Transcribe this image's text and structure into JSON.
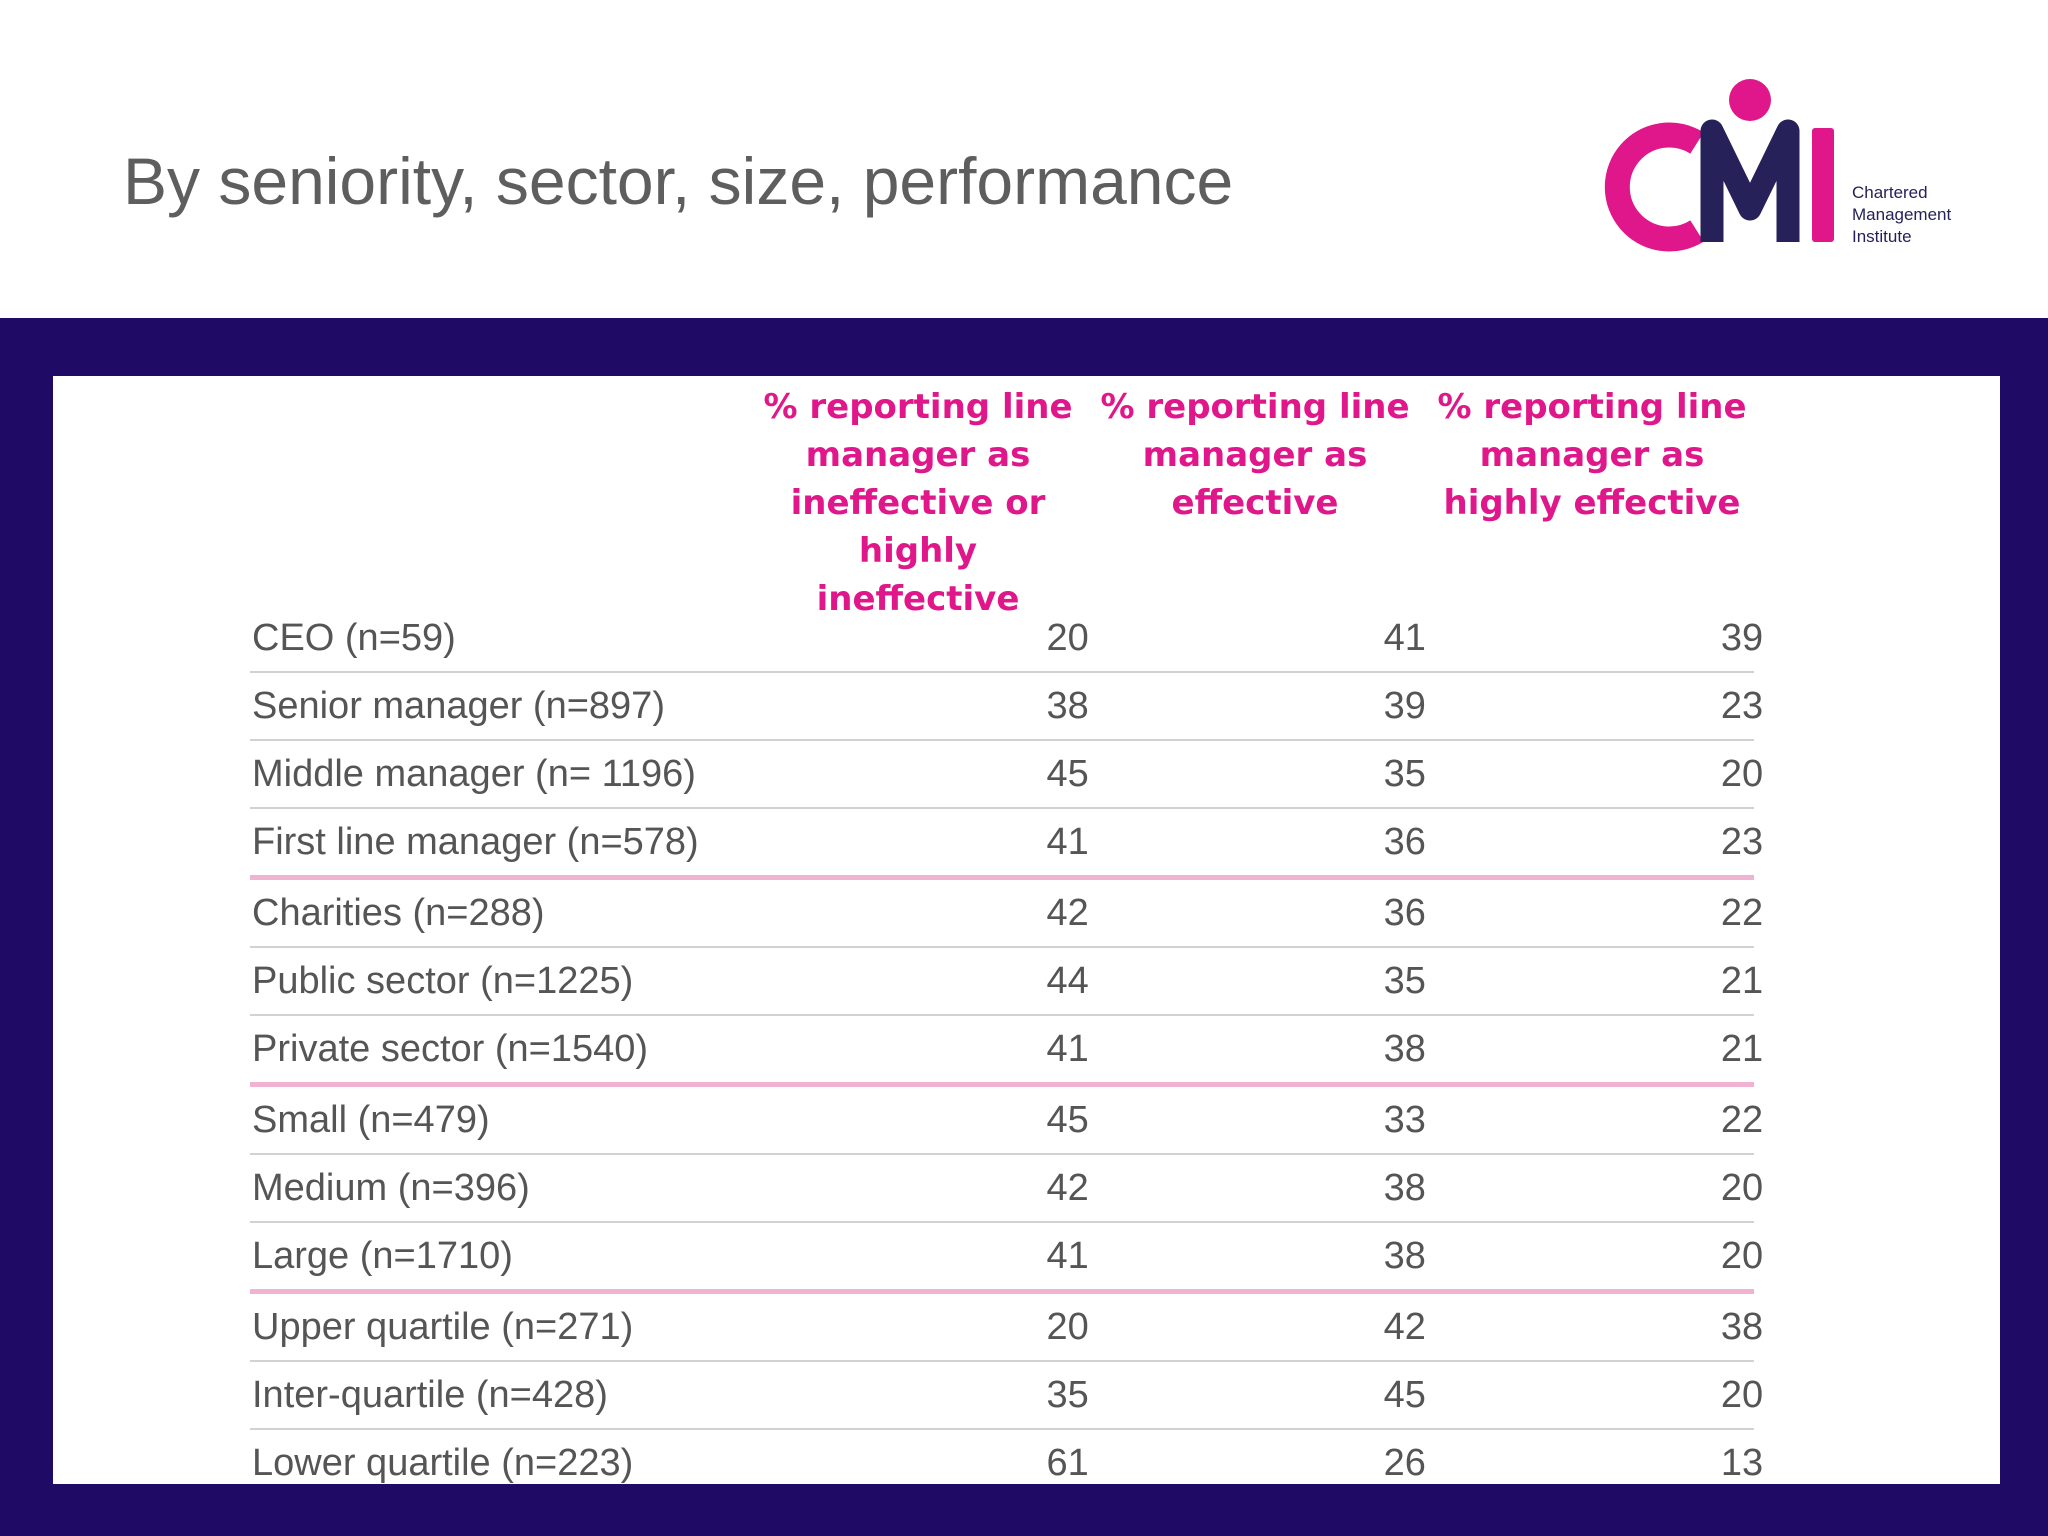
{
  "slide": {
    "title": "By seniority, sector, size, performance"
  },
  "logo": {
    "mark": "CMI",
    "lines": [
      "Chartered",
      "Management",
      "Institute"
    ],
    "colors": {
      "magenta": "#e0178a",
      "navy": "#262159"
    }
  },
  "colors": {
    "band": "#1f0a66",
    "header_text": "#e0178a",
    "group_divider": "#f0b3d2",
    "row_divider": "#d2d2d2",
    "body_text": "#555555"
  },
  "table": {
    "headers": [
      "% reporting line manager as ineffective or highly ineffective",
      "% reporting line manager as effective",
      "% reporting line manager as highly effective"
    ],
    "header_lines": [
      [
        "% reporting line",
        "manager as",
        "ineffective or",
        "highly ineffective"
      ],
      [
        "% reporting line",
        "manager as",
        "effective"
      ],
      [
        "% reporting line",
        "manager as",
        "highly effective"
      ]
    ],
    "rows": [
      {
        "label": "CEO (n=59)",
        "values": [
          "20",
          "41",
          "39"
        ]
      },
      {
        "label": "Senior manager (n=897)",
        "values": [
          "38",
          "39",
          "23"
        ]
      },
      {
        "label": "Middle manager (n= 1196)",
        "values": [
          "45",
          "35",
          "20"
        ]
      },
      {
        "label": "First line manager (n=578)",
        "values": [
          "41",
          "36",
          "23"
        ]
      },
      {
        "label": "Charities (n=288)",
        "values": [
          "42",
          "36",
          "22"
        ]
      },
      {
        "label": "Public sector (n=1225)",
        "values": [
          "44",
          "35",
          "21"
        ]
      },
      {
        "label": "Private sector (n=1540)",
        "values": [
          "41",
          "38",
          "21"
        ]
      },
      {
        "label": "Small (n=479)",
        "values": [
          "45",
          "33",
          "22"
        ]
      },
      {
        "label": "Medium (n=396)",
        "values": [
          "42",
          "38",
          "20"
        ]
      },
      {
        "label": "Large (n=1710)",
        "values": [
          "41",
          "38",
          "20"
        ]
      },
      {
        "label": "Upper quartile (n=271)",
        "values": [
          "20",
          "42",
          "38"
        ]
      },
      {
        "label": "Inter-quartile (n=428)",
        "values": [
          "35",
          "45",
          "20"
        ]
      },
      {
        "label": "Lower quartile (n=223)",
        "values": [
          "61",
          "26",
          "13"
        ]
      }
    ]
  }
}
